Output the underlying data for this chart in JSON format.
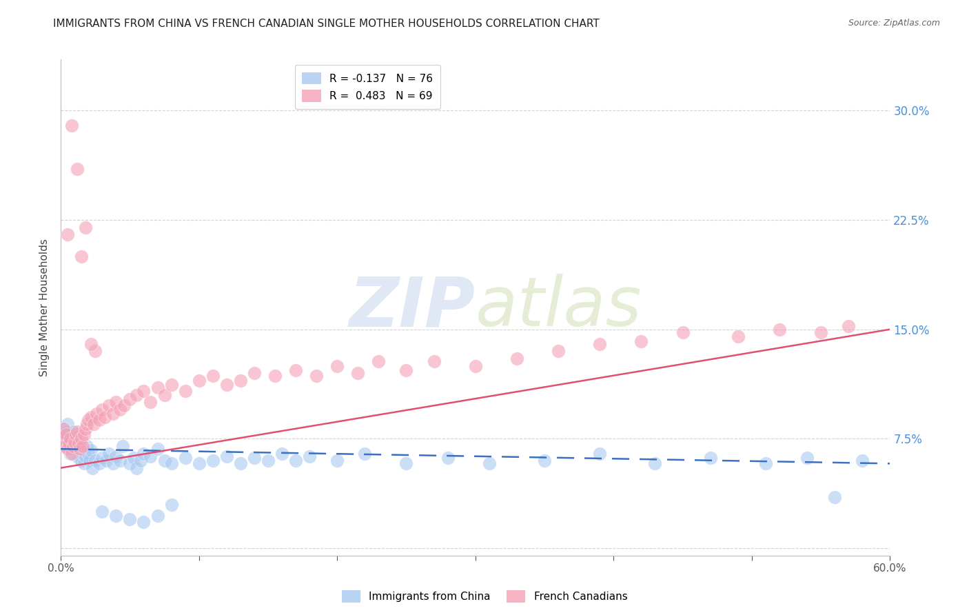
{
  "title": "IMMIGRANTS FROM CHINA VS FRENCH CANADIAN SINGLE MOTHER HOUSEHOLDS CORRELATION CHART",
  "source": "Source: ZipAtlas.com",
  "ylabel": "Single Mother Households",
  "xlim": [
    0.0,
    0.6
  ],
  "ylim": [
    -0.005,
    0.335
  ],
  "xticks": [
    0.0,
    0.1,
    0.2,
    0.3,
    0.4,
    0.5,
    0.6
  ],
  "xticklabels": [
    "0.0%",
    "",
    "",
    "",
    "",
    "",
    "60.0%"
  ],
  "yticks": [
    0.0,
    0.075,
    0.15,
    0.225,
    0.3
  ],
  "yticklabels": [
    "",
    "7.5%",
    "15.0%",
    "22.5%",
    "30.0%"
  ],
  "legend_entry_blue": "R = -0.137   N = 76",
  "legend_entry_pink": "R =  0.483   N = 69",
  "blue_color": "#a8c8f0",
  "pink_color": "#f4a0b5",
  "line_blue_color": "#3a6fc1",
  "line_pink_color": "#e05070",
  "watermark_zip": "ZIP",
  "watermark_atlas": "atlas",
  "right_tick_color": "#4a90d9",
  "grid_color": "#c8c8c8",
  "blue_scatter_x": [
    0.001,
    0.002,
    0.003,
    0.004,
    0.005,
    0.006,
    0.007,
    0.008,
    0.009,
    0.01,
    0.01,
    0.011,
    0.012,
    0.013,
    0.014,
    0.015,
    0.016,
    0.017,
    0.018,
    0.019,
    0.02,
    0.021,
    0.022,
    0.023,
    0.004,
    0.005,
    0.006,
    0.007,
    0.008,
    0.025,
    0.028,
    0.03,
    0.033,
    0.035,
    0.038,
    0.04,
    0.043,
    0.045,
    0.05,
    0.053,
    0.055,
    0.058,
    0.06,
    0.065,
    0.07,
    0.075,
    0.08,
    0.09,
    0.1,
    0.11,
    0.12,
    0.13,
    0.14,
    0.15,
    0.16,
    0.17,
    0.18,
    0.2,
    0.22,
    0.25,
    0.28,
    0.31,
    0.35,
    0.39,
    0.43,
    0.47,
    0.51,
    0.54,
    0.56,
    0.58,
    0.03,
    0.04,
    0.05,
    0.06,
    0.07,
    0.08
  ],
  "blue_scatter_y": [
    0.078,
    0.082,
    0.075,
    0.07,
    0.085,
    0.072,
    0.068,
    0.076,
    0.08,
    0.073,
    0.065,
    0.07,
    0.068,
    0.062,
    0.072,
    0.06,
    0.065,
    0.058,
    0.063,
    0.07,
    0.065,
    0.06,
    0.067,
    0.055,
    0.08,
    0.075,
    0.07,
    0.065,
    0.068,
    0.06,
    0.058,
    0.062,
    0.06,
    0.065,
    0.058,
    0.063,
    0.06,
    0.07,
    0.058,
    0.062,
    0.055,
    0.06,
    0.065,
    0.063,
    0.068,
    0.06,
    0.058,
    0.062,
    0.058,
    0.06,
    0.063,
    0.058,
    0.062,
    0.06,
    0.065,
    0.06,
    0.063,
    0.06,
    0.065,
    0.058,
    0.062,
    0.058,
    0.06,
    0.065,
    0.058,
    0.062,
    0.058,
    0.062,
    0.035,
    0.06,
    0.025,
    0.022,
    0.02,
    0.018,
    0.022,
    0.03
  ],
  "pink_scatter_x": [
    0.001,
    0.002,
    0.003,
    0.004,
    0.005,
    0.006,
    0.007,
    0.008,
    0.009,
    0.01,
    0.011,
    0.012,
    0.013,
    0.014,
    0.015,
    0.016,
    0.017,
    0.018,
    0.019,
    0.02,
    0.022,
    0.024,
    0.026,
    0.028,
    0.03,
    0.032,
    0.035,
    0.038,
    0.04,
    0.043,
    0.046,
    0.05,
    0.055,
    0.06,
    0.065,
    0.07,
    0.075,
    0.08,
    0.09,
    0.1,
    0.11,
    0.12,
    0.13,
    0.14,
    0.155,
    0.17,
    0.185,
    0.2,
    0.215,
    0.23,
    0.25,
    0.27,
    0.3,
    0.33,
    0.36,
    0.39,
    0.42,
    0.45,
    0.49,
    0.52,
    0.55,
    0.57,
    0.005,
    0.015,
    0.025,
    0.008,
    0.012,
    0.018,
    0.022
  ],
  "pink_scatter_y": [
    0.075,
    0.082,
    0.07,
    0.078,
    0.068,
    0.072,
    0.075,
    0.065,
    0.07,
    0.073,
    0.078,
    0.08,
    0.072,
    0.068,
    0.075,
    0.07,
    0.078,
    0.082,
    0.085,
    0.088,
    0.09,
    0.085,
    0.092,
    0.088,
    0.095,
    0.09,
    0.098,
    0.092,
    0.1,
    0.095,
    0.098,
    0.102,
    0.105,
    0.108,
    0.1,
    0.11,
    0.105,
    0.112,
    0.108,
    0.115,
    0.118,
    0.112,
    0.115,
    0.12,
    0.118,
    0.122,
    0.118,
    0.125,
    0.12,
    0.128,
    0.122,
    0.128,
    0.125,
    0.13,
    0.135,
    0.14,
    0.142,
    0.148,
    0.145,
    0.15,
    0.148,
    0.152,
    0.215,
    0.2,
    0.135,
    0.29,
    0.26,
    0.22,
    0.14
  ],
  "blue_line_x": [
    0.0,
    0.6
  ],
  "blue_line_y": [
    0.068,
    0.058
  ],
  "pink_line_x": [
    0.0,
    0.6
  ],
  "pink_line_y": [
    0.055,
    0.15
  ],
  "title_fontsize": 11,
  "label_fontsize": 11,
  "tick_fontsize": 11
}
